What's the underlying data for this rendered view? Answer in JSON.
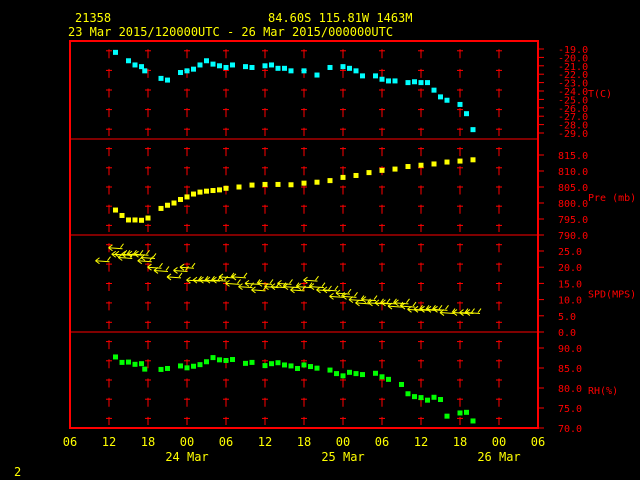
{
  "header": {
    "station": "21358",
    "location": "84.60S  115.81W  1463M",
    "period": "23 Mar 2015/120000UTC - 26 Mar 2015/000000UTC"
  },
  "page_number": "2",
  "colors": {
    "frame": "#ff0000",
    "axis_text": "#ffff00",
    "panel_text": "#ff0000",
    "temp": "#00ffff",
    "pressure": "#ffff00",
    "wind": "#ffff00",
    "rh": "#00ff00",
    "background": "#000000"
  },
  "chart_data": {
    "type": "scatter",
    "x_unit": "hours since 23 Mar 2015 06 UTC",
    "x_ticks": [
      "06",
      "12",
      "18",
      "00",
      "06",
      "12",
      "18",
      "00",
      "06",
      "12",
      "18",
      "00",
      "06"
    ],
    "day_labels": [
      {
        "label": "24 Mar",
        "at": 18
      },
      {
        "label": "25 Mar",
        "at": 42
      },
      {
        "label": "26 Mar",
        "at": 66
      }
    ],
    "xlim": [
      0,
      72
    ],
    "panels": [
      {
        "name": "temperature",
        "label": "T(C)",
        "color": "#00ffff",
        "marker": "square",
        "ylim": [
          -29,
          -19
        ],
        "ytick_labels": [
          "-19.0",
          "-20.0",
          "-21.0",
          "-22.0",
          "-23.0",
          "-24.0",
          "-25.0",
          "-26.0",
          "-27.0",
          "-28.0",
          "-29.0"
        ],
        "x": [
          7,
          9,
          10,
          11,
          11.5,
          14,
          15,
          17,
          18,
          19,
          20,
          21,
          22,
          23,
          24,
          25,
          27,
          28,
          30,
          31,
          32,
          33,
          34,
          36,
          38,
          40,
          42,
          43,
          44,
          45,
          47,
          48,
          49,
          50,
          52,
          53,
          54,
          55,
          56,
          57,
          58,
          60,
          61,
          62
        ],
        "y": [
          -19.4,
          -20.4,
          -20.9,
          -21.1,
          -21.6,
          -22.5,
          -22.7,
          -21.8,
          -21.6,
          -21.4,
          -20.9,
          -20.4,
          -20.8,
          -21.0,
          -21.2,
          -20.9,
          -21.1,
          -21.2,
          -21.0,
          -20.9,
          -21.3,
          -21.3,
          -21.6,
          -21.6,
          -22.1,
          -21.2,
          -21.1,
          -21.3,
          -21.6,
          -22.2,
          -22.2,
          -22.6,
          -22.8,
          -22.8,
          -23.0,
          -22.9,
          -23.0,
          -23.0,
          -23.9,
          -24.7,
          -25.1,
          -25.6,
          -26.7,
          -28.6
        ]
      },
      {
        "name": "pressure",
        "label": "Pre (mb)",
        "color": "#ffff00",
        "marker": "square",
        "ylim": [
          790,
          815
        ],
        "ytick_labels": [
          "815.0",
          "810.0",
          "805.0",
          "800.0",
          "795.0",
          "790.0"
        ],
        "x": [
          7,
          8,
          9,
          10,
          11,
          12,
          14,
          15,
          16,
          17,
          18,
          19,
          20,
          21,
          22,
          23,
          24,
          26,
          28,
          30,
          32,
          34,
          36,
          38,
          40,
          42,
          44,
          46,
          48,
          50,
          52,
          54,
          56,
          58,
          60,
          62
        ],
        "y": [
          797.8,
          796.1,
          794.7,
          794.7,
          794.6,
          795.3,
          798.3,
          799.3,
          800.0,
          801.1,
          801.9,
          802.8,
          803.4,
          803.7,
          803.9,
          804.1,
          804.6,
          805.0,
          805.6,
          805.8,
          805.8,
          805.7,
          806.2,
          806.5,
          807.0,
          808.0,
          808.6,
          809.5,
          810.2,
          810.6,
          811.4,
          811.8,
          812.2,
          812.8,
          813.1,
          813.5
        ]
      },
      {
        "name": "wind_speed",
        "label": "SPD(MPS)",
        "color": "#ffff00",
        "marker": "barb",
        "ylim": [
          0,
          25
        ],
        "ytick_labels": [
          "25.0",
          "20.0",
          "15.0",
          "10.0",
          "5.0",
          "0.0"
        ],
        "x": [
          5,
          7,
          7.5,
          8,
          8.5,
          9,
          10,
          11,
          11.5,
          12,
          13,
          14,
          16,
          17,
          18,
          19,
          20,
          21,
          22,
          23,
          24,
          25,
          26,
          27,
          28,
          29,
          30,
          31,
          32,
          33,
          34,
          35,
          36,
          37,
          38,
          39,
          40,
          41,
          42,
          43,
          44,
          45,
          46,
          47,
          48,
          49,
          50,
          51,
          52,
          53,
          54,
          55,
          56,
          57,
          58,
          60,
          61,
          62
        ],
        "y": [
          22,
          26,
          24,
          24,
          23,
          24,
          24,
          24,
          22,
          23,
          20,
          19,
          17,
          19,
          20,
          16,
          16,
          16,
          16,
          16,
          17,
          15,
          17,
          14,
          15,
          13,
          15,
          14,
          14,
          15,
          14,
          13,
          14,
          16,
          14,
          13,
          13,
          11,
          12,
          11,
          10,
          9,
          10,
          9,
          9,
          9,
          8,
          9,
          8,
          7,
          7,
          7,
          7,
          7,
          6,
          6,
          6,
          6
        ]
      },
      {
        "name": "relative_humidity",
        "label": "RH(%)",
        "color": "#00ff00",
        "marker": "square",
        "ylim": [
          70,
          95
        ],
        "ytick_labels": [
          "90.0",
          "85.0",
          "80.0",
          "75.0",
          "70.0"
        ],
        "x": [
          7,
          8,
          9,
          10,
          11,
          11.5,
          14,
          15,
          17,
          18,
          19,
          20,
          21,
          22,
          23,
          24,
          25,
          27,
          28,
          30,
          31,
          32,
          33,
          34,
          35,
          36,
          37,
          38,
          40,
          41,
          42,
          43,
          44,
          45,
          47,
          48,
          49,
          51,
          52,
          53,
          54,
          55,
          56,
          57,
          58,
          60,
          61,
          62
        ],
        "y": [
          92.2,
          90.5,
          90.6,
          89.9,
          90.1,
          88.4,
          88.3,
          88.6,
          89.4,
          88.8,
          89.3,
          89.8,
          90.7,
          92.0,
          91.3,
          91.1,
          91.4,
          90.2,
          90.5,
          89.5,
          90.1,
          90.4,
          89.7,
          89.4,
          88.6,
          89.7,
          89.2,
          88.7,
          88.1,
          87.0,
          86.3,
          87.4,
          87.0,
          86.7,
          87.1,
          86.0,
          85.2,
          83.6,
          80.7,
          79.8,
          79.5,
          78.7,
          79.6,
          78.9,
          73.7,
          74.7,
          74.9,
          72.2
        ]
      }
    ]
  }
}
